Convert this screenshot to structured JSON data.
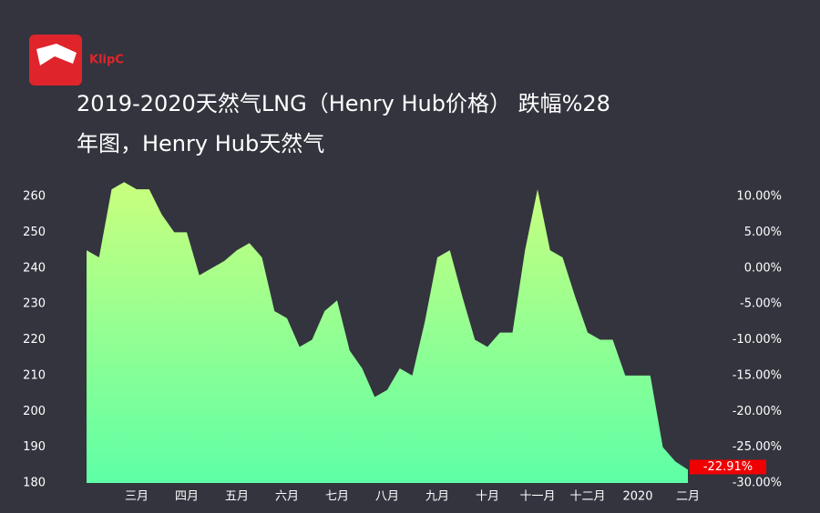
{
  "logo": "KlipC",
  "chart_data": {
    "type": "area",
    "title": [
      "2019-2020天然气LNG（Henry Hub价格） 跌幅%28",
      "年图，Henry Hub天然气"
    ],
    "categories": [
      null,
      null,
      null,
      null,
      "三月",
      null,
      null,
      null,
      "四月",
      null,
      null,
      null,
      "五月",
      null,
      null,
      null,
      "六月",
      null,
      null,
      null,
      "七月",
      null,
      null,
      null,
      "八月",
      null,
      null,
      null,
      "九月",
      null,
      null,
      null,
      "十月",
      null,
      null,
      null,
      "十一月",
      null,
      null,
      null,
      "十二月",
      null,
      null,
      null,
      "2020",
      null,
      null,
      null,
      "二月"
    ],
    "values": [
      245,
      243,
      262,
      264,
      262,
      262,
      255,
      250,
      250,
      238,
      240,
      242,
      245,
      247,
      243,
      228,
      226,
      218,
      220,
      228,
      231,
      217,
      212,
      204,
      206,
      212,
      210,
      225,
      243,
      245,
      232,
      220,
      218,
      222,
      222,
      245,
      262,
      245,
      243,
      232,
      222,
      220,
      220,
      210,
      210,
      210,
      190,
      186,
      183.7
    ],
    "ylim": [
      180,
      260
    ],
    "yticks": [
      180,
      190,
      200,
      210,
      220,
      230,
      240,
      250,
      260
    ],
    "y2lim": [
      -30,
      10
    ],
    "y2ticks": [
      {
        "value": -30,
        "label": "-30.00%"
      },
      {
        "value": -25,
        "label": "-25.00%"
      },
      {
        "value": -20,
        "label": "-20.00%"
      },
      {
        "value": -15,
        "label": "-15.00%"
      },
      {
        "value": -10,
        "label": "-10.00%"
      },
      {
        "value": -5,
        "label": "-5.00%"
      },
      {
        "value": 0,
        "label": "0.00%"
      },
      {
        "value": 5,
        "label": "5.00%"
      },
      {
        "value": 10,
        "label": "10.00%"
      }
    ],
    "last_change_label": "-22.91%",
    "color_top": "#c9ff7e",
    "color_bottom": "#5effa6",
    "background": "#33343e"
  }
}
